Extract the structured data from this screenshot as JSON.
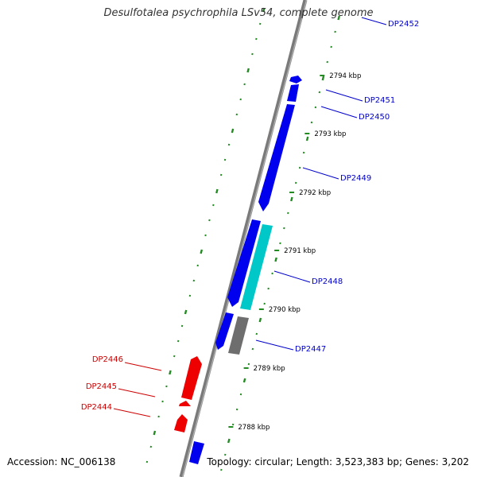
{
  "title": "Desulfotalea psychrophila LSv54, complete genome",
  "footer": {
    "accession": "Accession: NC_006138",
    "summary": "Topology: circular; Length: 3,523,383 bp; Genes: 3,202"
  },
  "colors": {
    "backbone": "#808080",
    "forward_gene": "#0000ff",
    "reverse_gene": "#ff0000",
    "highlight_gene": "#00cccc",
    "other_gene": "#707070",
    "gc_ticks": "#228b22",
    "forward_label": "#0000cc",
    "reverse_label": "#cc0000"
  },
  "ticks": [
    {
      "label": "2794 kbp"
    },
    {
      "label": "2793 kbp"
    },
    {
      "label": "2792 kbp"
    },
    {
      "label": "2791 kbp"
    },
    {
      "label": "2790 kbp"
    },
    {
      "label": "2789 kbp"
    },
    {
      "label": "2788 kbp"
    }
  ],
  "genes": [
    {
      "label": "DP2452",
      "strand": "forward"
    },
    {
      "label": "DP2451",
      "strand": "forward"
    },
    {
      "label": "DP2450",
      "strand": "forward"
    },
    {
      "label": "DP2449",
      "strand": "forward"
    },
    {
      "label": "DP2448",
      "strand": "forward"
    },
    {
      "label": "DP2447",
      "strand": "forward"
    },
    {
      "label": "DP2446",
      "strand": "reverse"
    },
    {
      "label": "DP2445",
      "strand": "reverse"
    },
    {
      "label": "DP2444",
      "strand": "reverse"
    }
  ]
}
